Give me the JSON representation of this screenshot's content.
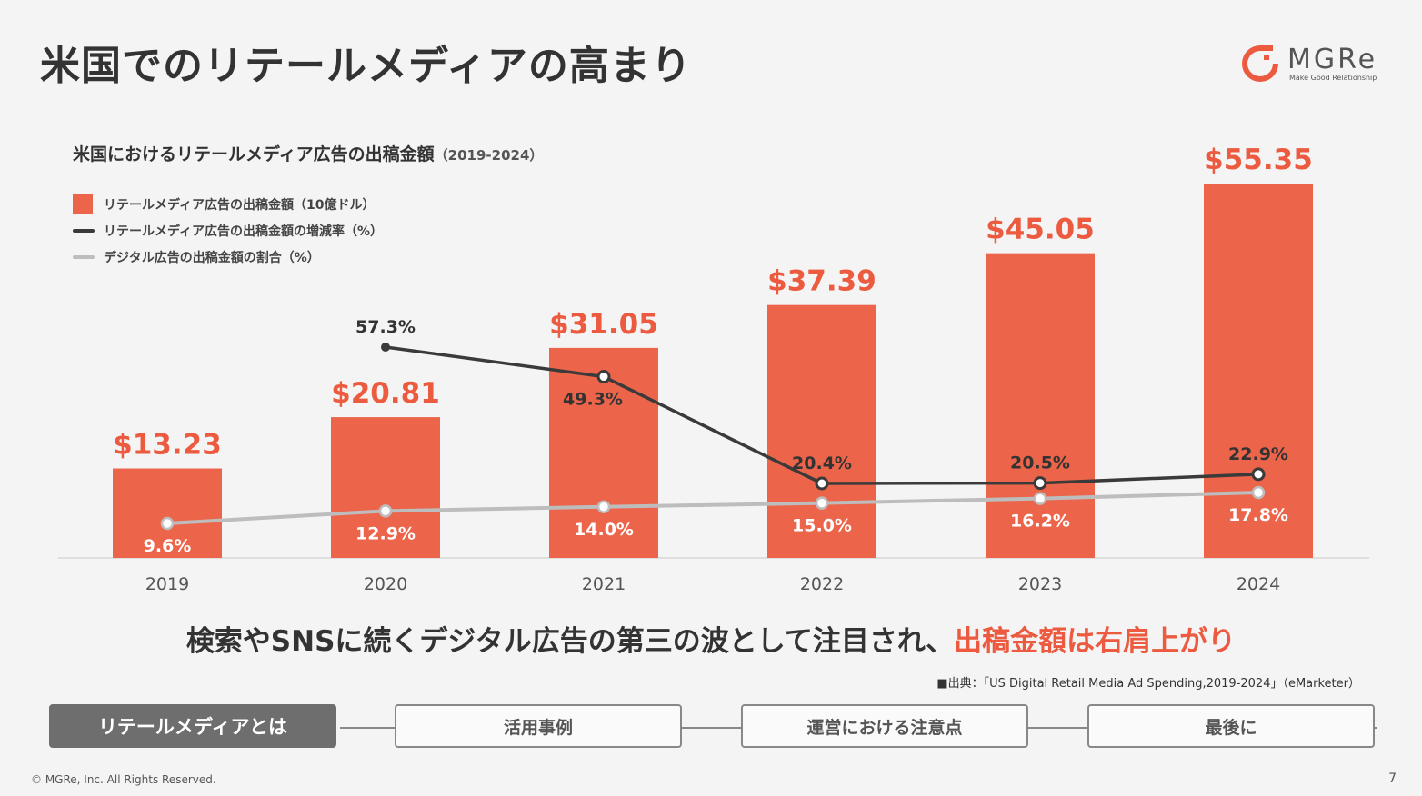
{
  "slide": {
    "title": "米国でのリテールメディアの高まり",
    "page_number": "7",
    "copyright": "© MGRe, Inc. All Rights Reserved."
  },
  "logo": {
    "text": "MGRe",
    "tagline": "Make Good Relationship",
    "color": "#ec5a3f"
  },
  "chart_heading": {
    "title": "米国におけるリテールメディア広告の出稿金額",
    "period": "（2019-2024）"
  },
  "legend": [
    {
      "label": "リテールメディア広告の出稿金額（10億ドル）",
      "kind": "box",
      "color": "#ec6449"
    },
    {
      "label": "リテールメディア広告の出稿金額の増減率（%）",
      "kind": "line",
      "color": "#3a3a3a"
    },
    {
      "label": "デジタル広告の出稿金額の割合（%）",
      "kind": "line",
      "color": "#bdbdbd"
    }
  ],
  "chart_data": {
    "type": "bar",
    "categories": [
      "2019",
      "2020",
      "2021",
      "2022",
      "2023",
      "2024"
    ],
    "series": [
      {
        "name": "リテールメディア広告の出稿金額（10億ドル）",
        "type": "bar",
        "values": [
          13.23,
          20.81,
          31.05,
          37.39,
          45.05,
          55.35
        ],
        "labels": [
          "$13.23",
          "$20.81",
          "$31.05",
          "$37.39",
          "$45.05",
          "$55.35"
        ],
        "color": "#ec6449"
      },
      {
        "name": "リテールメディア広告の出稿金額の増減率（%）",
        "type": "line",
        "values": [
          null,
          57.3,
          49.3,
          20.4,
          20.5,
          22.9
        ],
        "labels": [
          "",
          "57.3%",
          "49.3%",
          "20.4%",
          "20.5%",
          "22.9%"
        ],
        "color": "#3a3a3a"
      },
      {
        "name": "デジタル広告の出稿金額の割合（%）",
        "type": "line",
        "values": [
          9.6,
          12.9,
          14.0,
          15.0,
          16.2,
          17.8
        ],
        "labels": [
          "9.6%",
          "12.9%",
          "14.0%",
          "15.0%",
          "16.2%",
          "17.8%"
        ],
        "color": "#bdbdbd"
      }
    ],
    "grid": false,
    "legend_position": "top-left"
  },
  "tagline": {
    "main": "検索やSNSに続くデジタル広告の第三の波として注目され、",
    "accent": "出稿金額は右肩上がり"
  },
  "source": "■出典：「US Digital Retail Media Ad Spending,2019-2024」（eMarketer）",
  "nav": [
    {
      "label": "リテールメディアとは",
      "active": true
    },
    {
      "label": "活用事例",
      "active": false
    },
    {
      "label": "運営における注意点",
      "active": false
    },
    {
      "label": "最後に",
      "active": false
    }
  ]
}
